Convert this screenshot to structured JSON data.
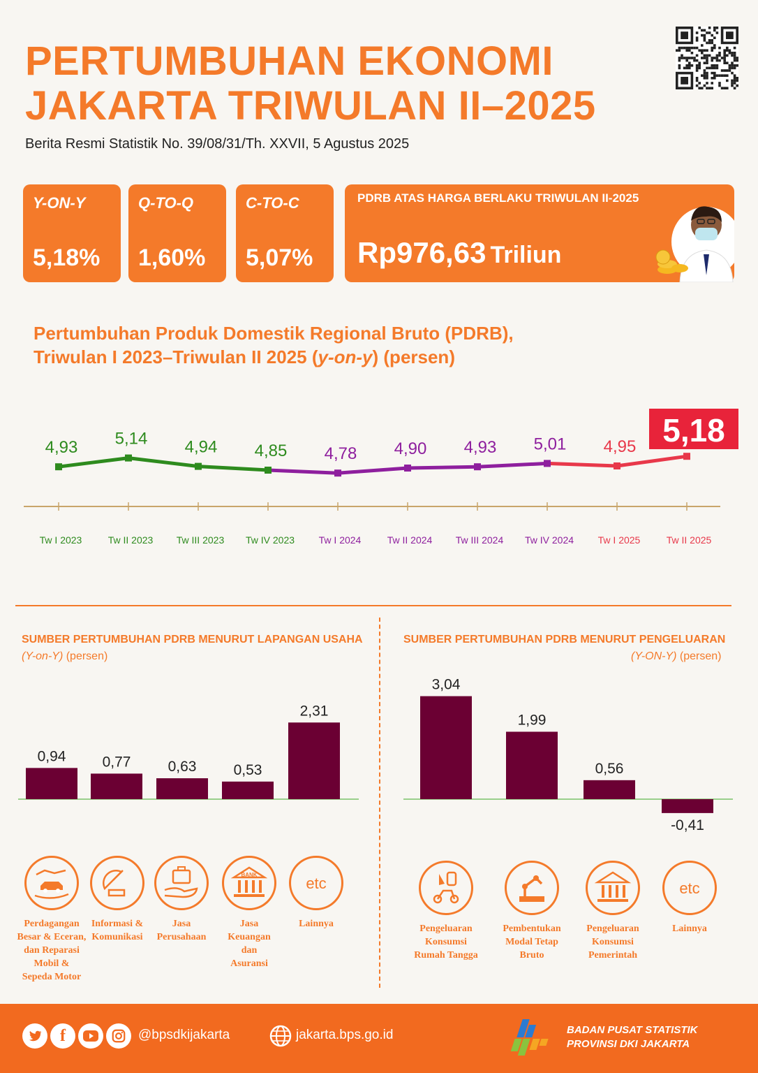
{
  "header": {
    "title_line1": "PERTUMBUHAN EKONOMI",
    "title_line2": "JAKARTA TRIWULAN II–2025",
    "subtitle": "Berita Resmi Statistik No. 39/08/31/Th. XXVII, 5 Agustus 2025"
  },
  "cards": [
    {
      "label": "Y-ON-Y",
      "value": "5,18%"
    },
    {
      "label": "Q-TO-Q",
      "value": "1,60%"
    },
    {
      "label": "C-TO-C",
      "value": "5,07%"
    }
  ],
  "pdrb_card": {
    "label": "PDRB ATAS HARGA BERLAKU TRIWULAN II-2025",
    "value": "Rp976,63",
    "unit": "Triliun"
  },
  "chart_data": [
    {
      "type": "line",
      "title_line1": "Pertumbuhan Produk Domestik Regional Bruto (PDRB),",
      "title_line2_a": "Triwulan I 2023–Triwulan II 2025 (",
      "title_line2_b": "y-on-y",
      "title_line2_c": ") (persen)",
      "categories": [
        "Tw I 2023",
        "Tw II 2023",
        "Tw III 2023",
        "Tw IV 2023",
        "Tw I 2024",
        "Tw II 2024",
        "Tw III 2024",
        "Tw IV 2024",
        "Tw I 2025",
        "Tw II 2025"
      ],
      "values": [
        4.93,
        5.14,
        4.94,
        4.85,
        4.78,
        4.9,
        4.93,
        5.01,
        4.95,
        5.18
      ],
      "labels": [
        "4,93",
        "5,14",
        "4,94",
        "4,85",
        "4,78",
        "4,90",
        "4,93",
        "5,01",
        "4,95",
        "5,18"
      ],
      "colors": [
        "#2e8b1e",
        "#2e8b1e",
        "#2e8b1e",
        "#2e8b1e",
        "#8e1f9e",
        "#8e1f9e",
        "#8e1f9e",
        "#8e1f9e",
        "#e8384a",
        "#e8384a"
      ],
      "highlight_color": "#e8233a",
      "ylim": [
        4.0,
        6.0
      ]
    },
    {
      "type": "bar",
      "title": "SUMBER PERTUMBUHAN PDRB MENURUT LAPANGAN USAHA",
      "subtitle_italic": "(Y-on-Y)",
      "subtitle_rest": " (persen)",
      "categories": [
        "Perdagangan Besar & Eceran, dan Reparasi Mobil & Sepeda Motor",
        "Informasi & Komunikasi",
        "Jasa Perusahaan",
        "Jasa Keuangan dan Asuransi",
        "Lainnya"
      ],
      "values": [
        0.94,
        0.77,
        0.63,
        0.53,
        2.31
      ],
      "labels": [
        "0,94",
        "0,77",
        "0,63",
        "0,53",
        "2,31"
      ],
      "bar_color": "#6b0033",
      "ylim": [
        0,
        3.2
      ]
    },
    {
      "type": "bar",
      "title": "SUMBER PERTUMBUHAN PDRB MENURUT PENGELUARAN",
      "subtitle_italic": "(Y-ON-Y)",
      "subtitle_rest": " (persen)",
      "categories": [
        "Pengeluaran Konsumsi Rumah Tangga",
        "Pembentukan Modal Tetap Bruto",
        "Pengeluaran Konsumsi Pemerintah",
        "Lainnya"
      ],
      "values": [
        3.04,
        1.99,
        0.56,
        -0.41
      ],
      "labels": [
        "3,04",
        "1,99",
        "0,56",
        "-0,41"
      ],
      "bar_color": "#6b0033",
      "ylim": [
        -1,
        3.2
      ]
    }
  ],
  "icons_left": [
    {
      "icon": "handshake-car-icon",
      "lines": [
        "Perdagangan",
        "Besar & Eceran,",
        "dan Reparasi",
        "Mobil &",
        "Sepeda Motor"
      ]
    },
    {
      "icon": "satellite-dish-icon",
      "lines": [
        "Informasi &",
        "Komunikasi"
      ]
    },
    {
      "icon": "briefcase-hand-icon",
      "lines": [
        "Jasa",
        "Perusahaan"
      ]
    },
    {
      "icon": "bank-icon",
      "icon_text": "BANK",
      "lines": [
        "Jasa",
        "Keuangan",
        "dan",
        "Asuransi"
      ]
    },
    {
      "icon": "etc-icon",
      "icon_text": "etc",
      "lines": [
        "Lainnya"
      ]
    }
  ],
  "icons_right": [
    {
      "icon": "consumption-icon",
      "lines": [
        "Pengeluaran",
        "Konsumsi",
        "Rumah Tangga"
      ]
    },
    {
      "icon": "robot-arm-icon",
      "lines": [
        "Pembentukan",
        "Modal Tetap Bruto"
      ]
    },
    {
      "icon": "government-building-icon",
      "lines": [
        "Pengeluaran",
        "Konsumsi",
        "Pemerintah"
      ]
    },
    {
      "icon": "etc-icon",
      "icon_text": "etc",
      "lines": [
        "Lainnya"
      ]
    }
  ],
  "footer": {
    "social_handle": "@bpsdkijakarta",
    "website": "jakarta.bps.go.id",
    "org_line1": "BADAN PUSAT STATISTIK",
    "org_line2": "PROVINSI DKI JAKARTA"
  },
  "colors": {
    "accent": "#f47a2a",
    "footer": "#f26a1f",
    "bar": "#6b0033"
  }
}
